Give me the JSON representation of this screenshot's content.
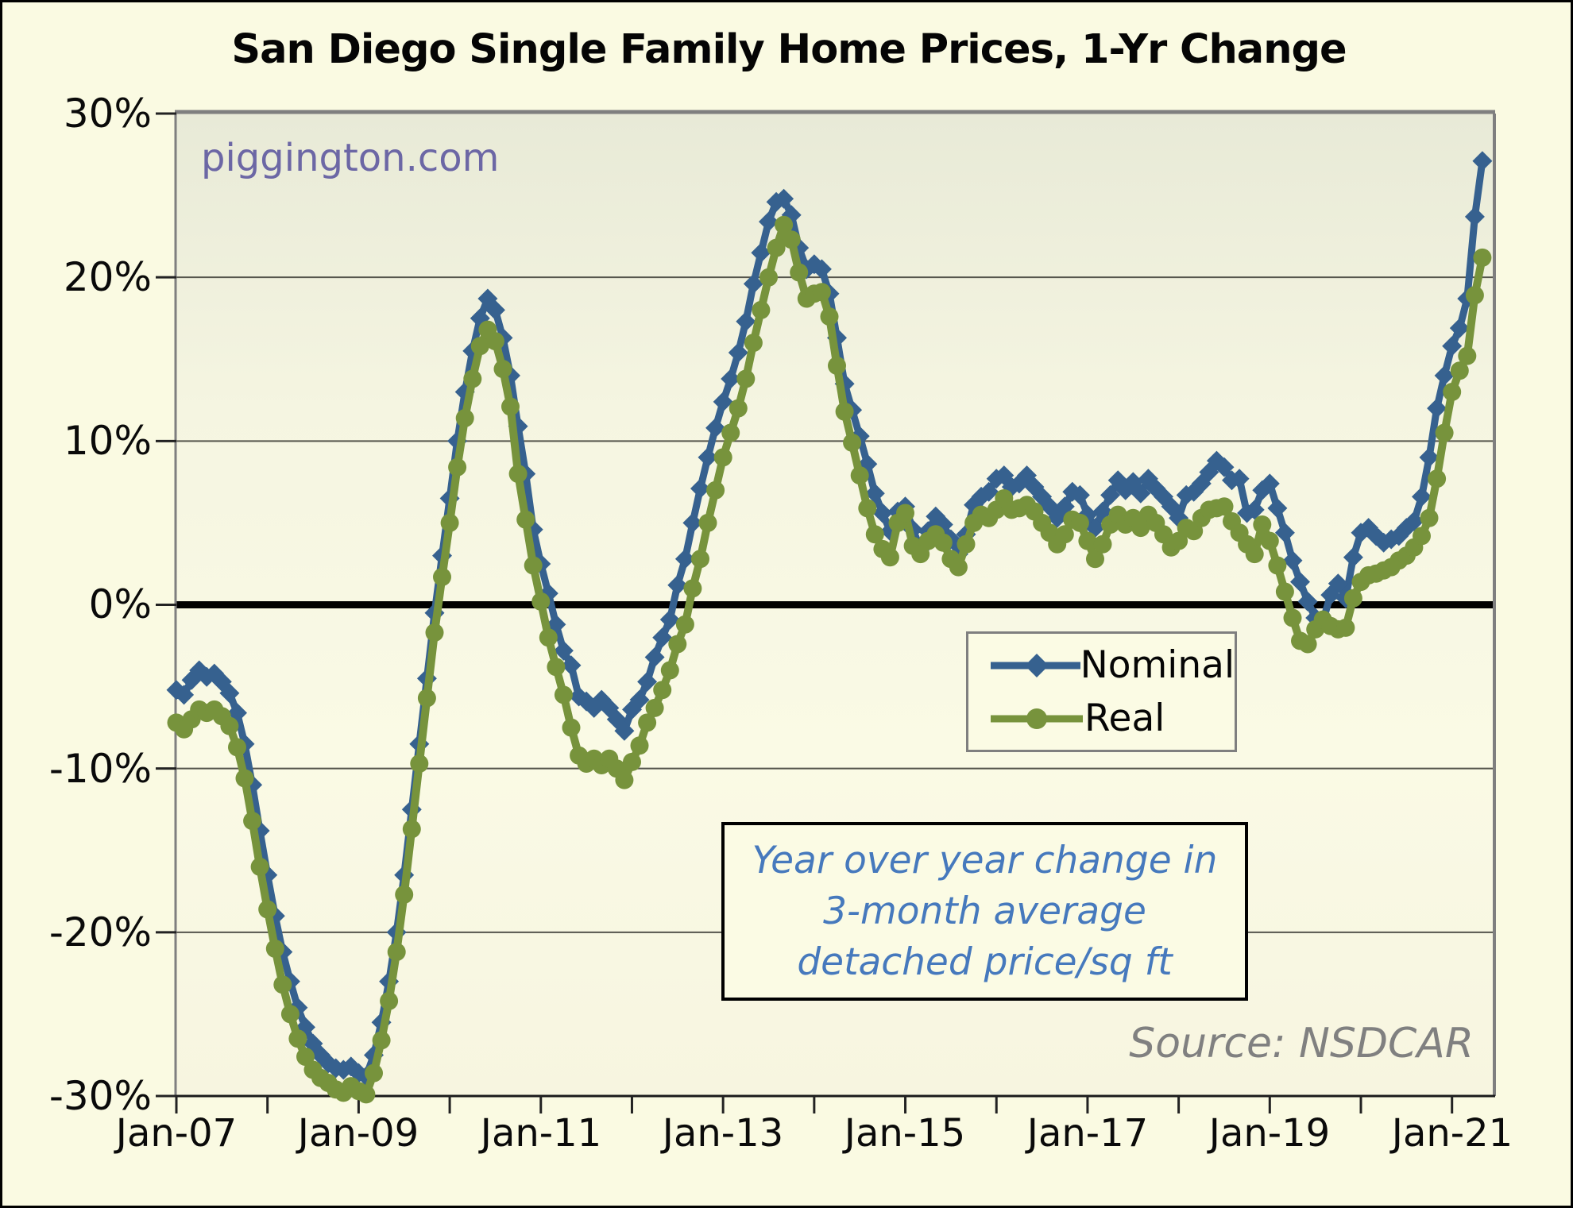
{
  "title": "San Diego Single Family Home Prices, 1-Yr Change",
  "watermark": "piggington.com",
  "source_note": "Source: NSDCAR",
  "annotation_lines": [
    "Year over year change in",
    "3-month average",
    "detached price/sq ft"
  ],
  "colors": {
    "nominal": "#36618F",
    "real": "#77933C",
    "zero_line": "#000000",
    "gridline": "#55554C",
    "plot_border": "#7F7F7F",
    "annotation_text": "#4679BD",
    "watermark_text": "#6C67A5",
    "source_text": "#808080",
    "background": "#FAFAE2"
  },
  "chart_data": {
    "type": "line",
    "title": "San Diego Single Family Home Prices, 1-Yr Change",
    "xlabel": "",
    "ylabel": "",
    "x_start": "Jan-2007",
    "x_end": "May-2021",
    "x_frequency": "monthly",
    "x_tick_labels": [
      "Jan-07",
      "Jan-09",
      "Jan-11",
      "Jan-13",
      "Jan-15",
      "Jan-17",
      "Jan-19",
      "Jan-21"
    ],
    "y_tick_labels": [
      "30%",
      "20%",
      "10%",
      "0%",
      "-10%",
      "-20%",
      "-30%"
    ],
    "y_tick_values": [
      30,
      20,
      10,
      0,
      -10,
      -20,
      -30
    ],
    "ylim": [
      -30,
      30
    ],
    "grid": true,
    "zero_line_emphasized": true,
    "legend_position": "middle-right",
    "series": [
      {
        "name": "Nominal",
        "color": "#36618F",
        "marker": "diamond",
        "values": [
          -5.2,
          -5.5,
          -4.6,
          -4.0,
          -4.4,
          -4.2,
          -4.7,
          -5.4,
          -6.6,
          -8.5,
          -11.0,
          -13.8,
          -16.5,
          -19.0,
          -21.2,
          -23.0,
          -24.6,
          -25.8,
          -26.8,
          -27.5,
          -28.0,
          -28.3,
          -28.4,
          -28.2,
          -28.6,
          -28.8,
          -27.5,
          -25.5,
          -23.0,
          -20.0,
          -16.5,
          -12.5,
          -8.5,
          -4.5,
          -0.5,
          3.0,
          6.5,
          10.0,
          13.0,
          15.5,
          17.5,
          18.7,
          18.0,
          16.3,
          14.0,
          10.9,
          8.0,
          4.6,
          2.5,
          0.7,
          -1.2,
          -2.8,
          -3.7,
          -5.6,
          -5.9,
          -6.3,
          -5.8,
          -6.3,
          -7.0,
          -7.7,
          -6.4,
          -5.8,
          -4.7,
          -3.2,
          -2.0,
          -0.9,
          1.2,
          2.8,
          5.0,
          7.1,
          9.0,
          10.8,
          12.4,
          13.8,
          15.4,
          17.3,
          19.6,
          21.5,
          23.4,
          24.6,
          24.8,
          23.8,
          21.8,
          20.5,
          20.8,
          20.5,
          19.0,
          16.3,
          13.5,
          11.9,
          10.3,
          8.6,
          6.8,
          5.6,
          4.5,
          5.7,
          6.0,
          4.6,
          3.4,
          4.5,
          5.4,
          4.9,
          4.0,
          3.1,
          4.3,
          6.1,
          6.6,
          6.9,
          7.7,
          7.9,
          7.2,
          7.4,
          7.9,
          7.2,
          6.6,
          6.0,
          5.3,
          6.0,
          6.9,
          6.7,
          5.5,
          4.7,
          5.7,
          6.7,
          7.6,
          7.0,
          7.5,
          6.8,
          7.7,
          7.1,
          6.6,
          6.0,
          5.3,
          6.7,
          6.9,
          7.4,
          8.1,
          8.8,
          8.4,
          7.6,
          7.7,
          5.6,
          5.8,
          7.0,
          7.4,
          5.9,
          4.4,
          2.7,
          1.4,
          0.2,
          -0.8,
          -1.0,
          0.6,
          1.3,
          0.4,
          2.9,
          4.4,
          4.7,
          4.2,
          3.8,
          4.0,
          4.2,
          4.7,
          5.1,
          6.6,
          9.0,
          12.0,
          14.0,
          15.8,
          16.9,
          18.7,
          23.7,
          27.1
        ]
      },
      {
        "name": "Real",
        "color": "#77933C",
        "marker": "circle",
        "values": [
          -7.2,
          -7.6,
          -7.0,
          -6.4,
          -6.6,
          -6.4,
          -6.8,
          -7.4,
          -8.7,
          -10.6,
          -13.2,
          -16.0,
          -18.6,
          -21.0,
          -23.2,
          -25.0,
          -26.5,
          -27.6,
          -28.4,
          -28.9,
          -29.2,
          -29.6,
          -29.8,
          -29.4,
          -29.7,
          -29.9,
          -28.6,
          -26.6,
          -24.2,
          -21.2,
          -17.7,
          -13.7,
          -9.7,
          -5.7,
          -1.7,
          1.7,
          5.0,
          8.4,
          11.4,
          13.8,
          15.8,
          16.8,
          16.1,
          14.4,
          12.1,
          8.0,
          5.2,
          2.4,
          0.2,
          -2.0,
          -3.8,
          -5.5,
          -7.5,
          -9.2,
          -9.7,
          -9.4,
          -9.8,
          -9.4,
          -10.0,
          -10.7,
          -9.6,
          -8.6,
          -7.2,
          -6.3,
          -5.2,
          -4.0,
          -2.4,
          -1.2,
          1.0,
          2.8,
          5.0,
          7.0,
          9.0,
          10.5,
          12.0,
          13.8,
          16.0,
          18.0,
          20.0,
          21.8,
          23.2,
          22.3,
          20.3,
          18.7,
          19.0,
          19.1,
          17.6,
          14.6,
          11.8,
          9.9,
          7.9,
          5.9,
          4.3,
          3.4,
          2.9,
          5.0,
          5.6,
          3.6,
          3.1,
          3.9,
          4.3,
          3.8,
          2.8,
          2.3,
          3.7,
          5.0,
          5.5,
          5.3,
          5.8,
          6.5,
          5.8,
          5.9,
          6.1,
          5.7,
          5.0,
          4.4,
          3.7,
          4.3,
          5.2,
          5.0,
          3.9,
          2.8,
          3.7,
          4.9,
          5.5,
          4.9,
          5.3,
          4.7,
          5.5,
          5.0,
          4.3,
          3.5,
          3.9,
          4.7,
          4.5,
          5.3,
          5.8,
          5.9,
          6.0,
          5.1,
          4.4,
          3.7,
          3.1,
          4.9,
          3.9,
          2.4,
          0.8,
          -0.8,
          -2.2,
          -2.4,
          -1.5,
          -0.9,
          -1.3,
          -1.5,
          -1.4,
          0.4,
          1.4,
          1.8,
          1.9,
          2.1,
          2.3,
          2.7,
          3.0,
          3.5,
          4.2,
          5.3,
          7.7,
          10.5,
          13.0,
          14.3,
          15.2,
          18.9,
          21.2
        ]
      }
    ]
  }
}
